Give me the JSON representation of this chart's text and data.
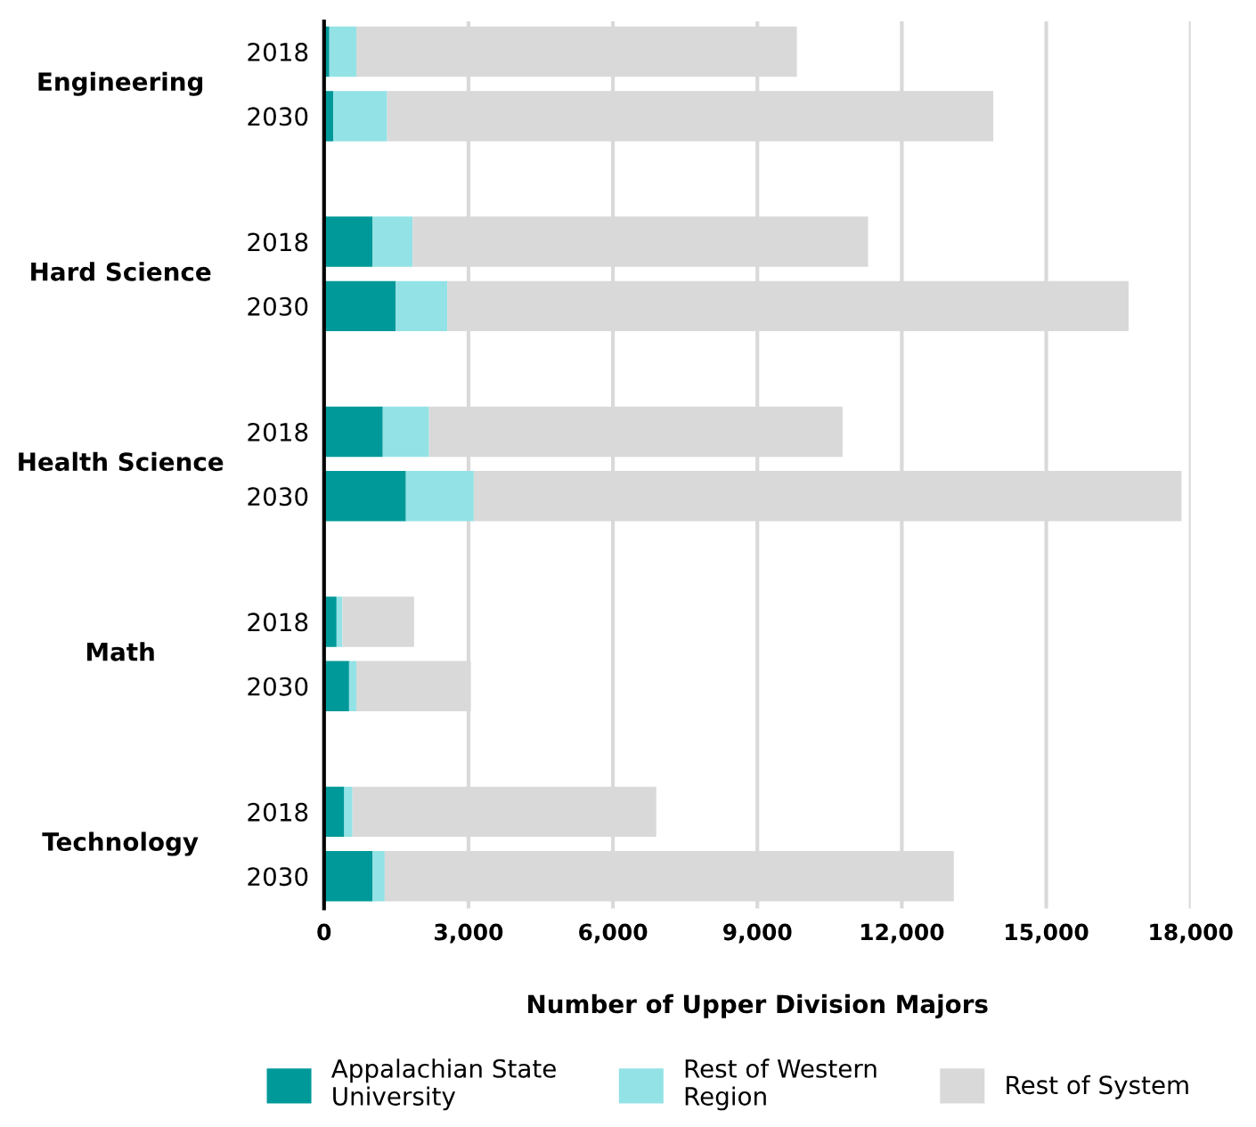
{
  "chart_data": {
    "type": "bar",
    "orientation": "horizontal",
    "stacked": true,
    "categories": [
      "2018",
      "2030",
      "2018",
      "2030",
      "2018",
      "2030",
      "2018",
      "2030",
      "2018",
      "2030"
    ],
    "annotations": [
      "Engineering",
      "Hard Science",
      "Health Science",
      "Math",
      "Technology"
    ],
    "xlabel": "Number of Upper Division Majors",
    "series": [
      {
        "name": "Appalachian State\nUniversity",
        "color": "#009999",
        "values": [
          110,
          190,
          1010,
          1490,
          1220,
          1700,
          260,
          520,
          420,
          1010
        ]
      },
      {
        "name": "Rest of Western\nRegion",
        "color": "#93e2e6",
        "values": [
          560,
          1120,
          830,
          1070,
          960,
          1410,
          120,
          150,
          170,
          250
        ]
      },
      {
        "name": "Rest of System",
        "color": "#d9d9d9",
        "values": [
          9150,
          12590,
          9460,
          14150,
          8590,
          14700,
          1490,
          2380,
          6310,
          11820
        ]
      }
    ],
    "xlim": [
      0,
      18000
    ],
    "xticks": [
      0,
      {
        "value": 3000,
        "label": "3,000"
      },
      {
        "value": 6000,
        "label": "6,000"
      },
      {
        "value": 9000,
        "label": "9,000"
      },
      {
        "value": 12000,
        "label": "12,000"
      },
      {
        "value": 15000,
        "label": "15,000"
      },
      {
        "value": 18000,
        "label": "18,000"
      }
    ],
    "grid": "x",
    "legend": "bottom"
  }
}
